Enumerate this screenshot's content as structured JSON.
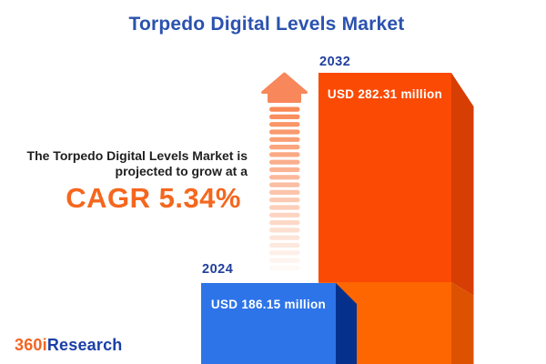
{
  "title": "Torpedo Digital Levels Market",
  "annotation": {
    "line1": "The Torpedo Digital Levels Market is",
    "line2": "projected to grow at a",
    "cagr": "CAGR 5.34%"
  },
  "logo": {
    "prefix": "360i",
    "suffix": "Research"
  },
  "chart_data": {
    "type": "bar",
    "title": "Torpedo Digital Levels Market",
    "categories": [
      "2024",
      "2032"
    ],
    "values": [
      186.15,
      282.31
    ],
    "unit": "USD million",
    "value_labels": [
      "USD 186.15 million",
      "USD 282.31 million"
    ],
    "cagr_percent": 5.34,
    "legend": "none",
    "axes": "none",
    "colors": {
      "bar_2024_face": "#2D74E9",
      "bar_2024_side": "#05318C",
      "bar_2032_face_upper": "#FB4A03",
      "bar_2032_side_upper": "#D63E03",
      "bar_2032_face_lower": "#FD6600",
      "bar_2032_side_lower": "#DD5200",
      "arrow": "#F8834E",
      "arrow_head": "#F8875B",
      "title_blue": "#2B52AE",
      "year_label_blue": "#203F9C",
      "cagr_orange": "#F4671E",
      "logo_orange": "#F26522",
      "logo_blue": "#1B3FA5"
    }
  }
}
